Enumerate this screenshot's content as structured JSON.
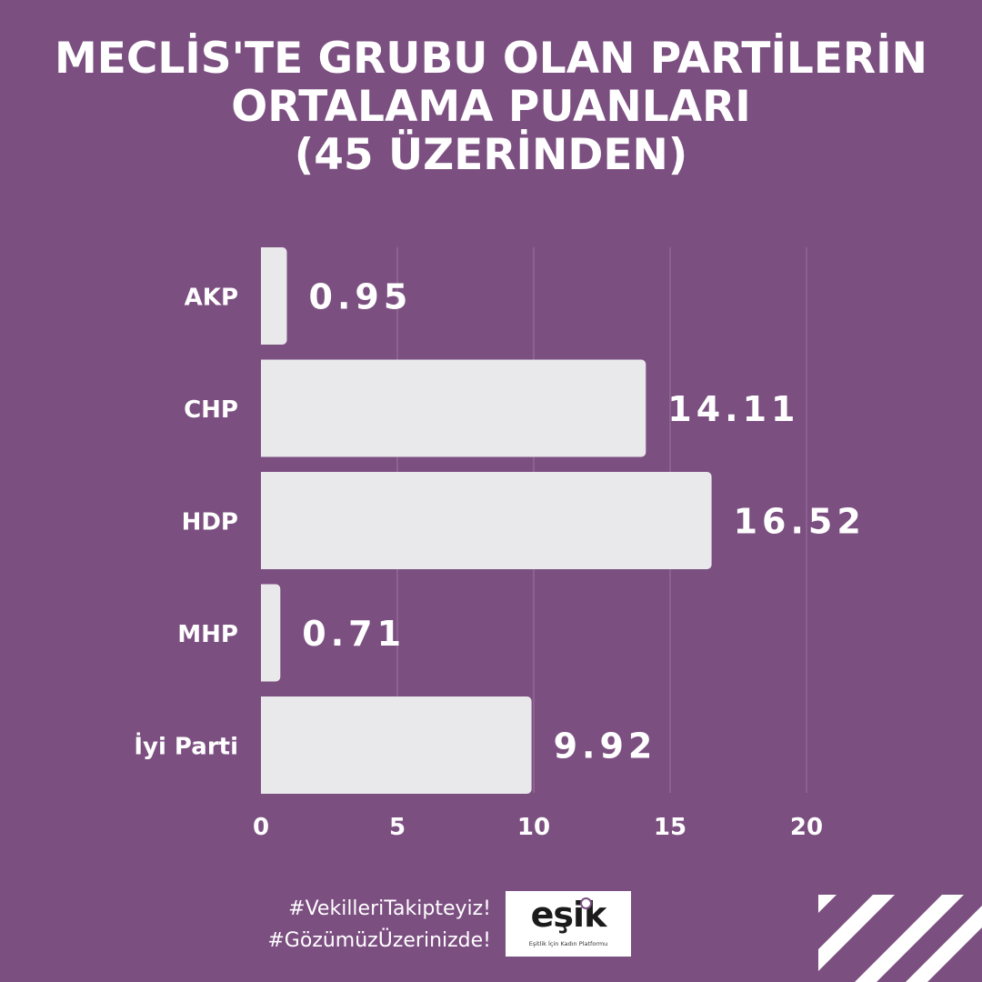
{
  "title_lines": [
    "MECLİS'TE GRUBU OLAN PARTİLERİN",
    "ORTALAMA PUANLARI",
    "(45 ÜZERİNDEN)"
  ],
  "chart_data": {
    "type": "bar",
    "orientation": "horizontal",
    "categories": [
      "AKP",
      "CHP",
      "HDP",
      "MHP",
      "İyi Parti"
    ],
    "values": [
      0.95,
      14.11,
      16.52,
      0.71,
      9.92
    ],
    "value_labels": [
      "0.95",
      "14.11",
      "16.52",
      "0.71",
      "9.92"
    ],
    "xlim": [
      0,
      20
    ],
    "xticks": [
      0,
      5,
      10,
      15,
      20
    ],
    "grid": true,
    "bar_color": "#e9e8ea",
    "background_color": "#7c4f81"
  },
  "footer": {
    "hashtags": [
      "#VekilleriTakipteyiz!",
      "#GözümüzÜzerinizde!"
    ],
    "logo_text": "eşik",
    "logo_subtitle": "Eşitlik İçin Kadın Platformu"
  }
}
